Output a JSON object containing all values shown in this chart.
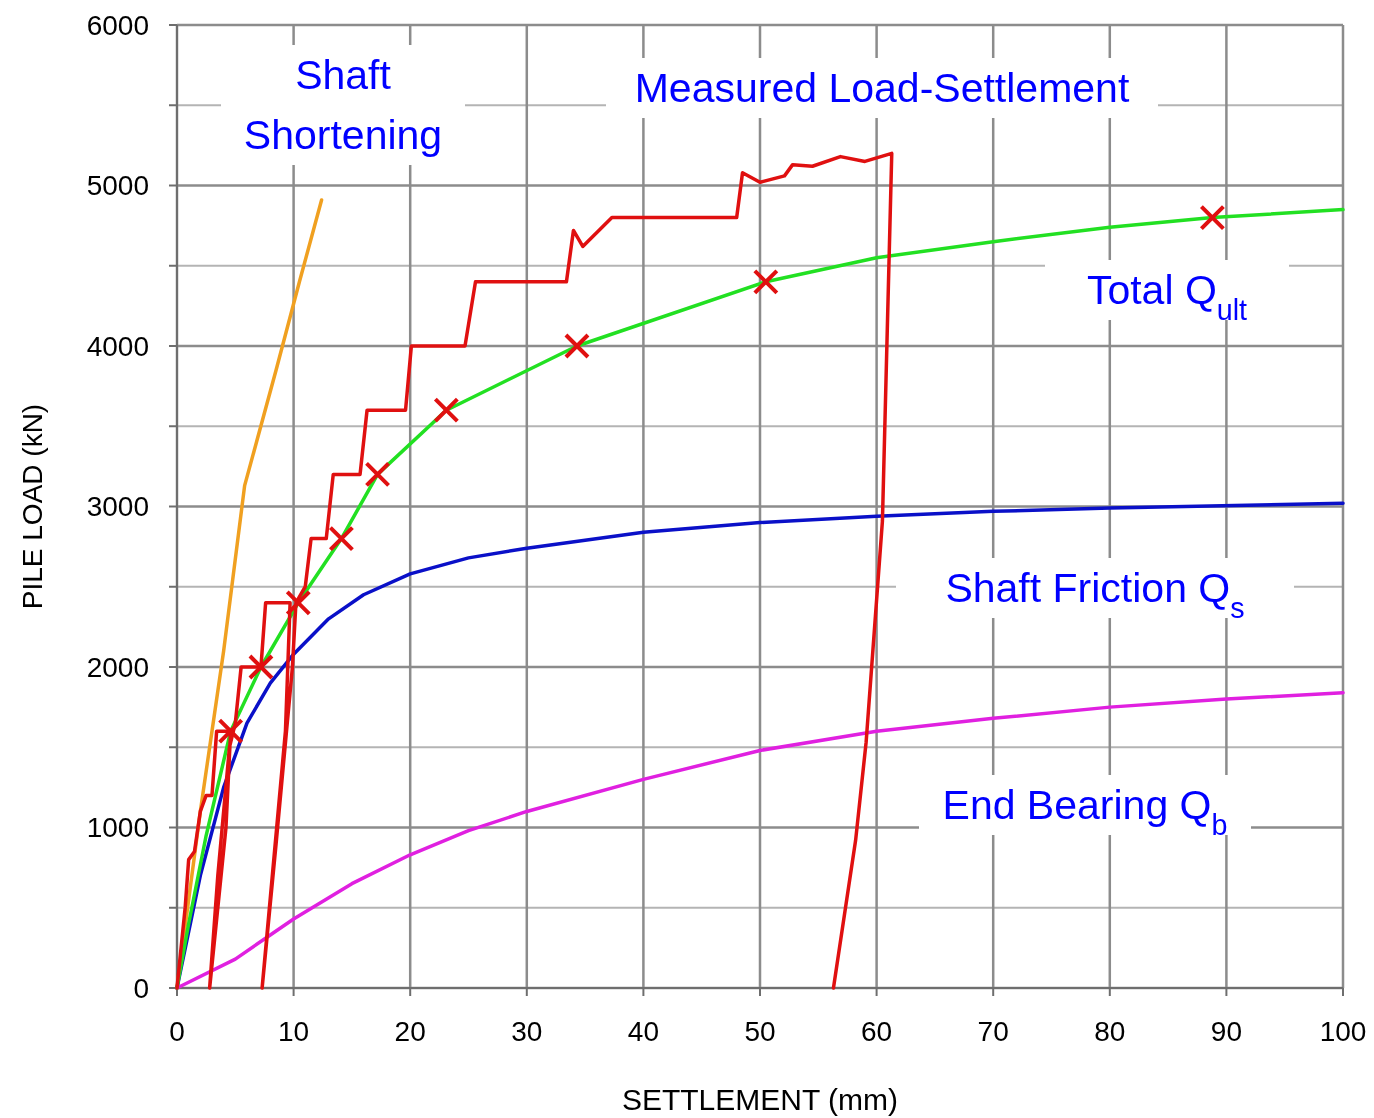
{
  "chart_data": {
    "type": "line",
    "xlabel": "SETTLEMENT (mm)",
    "ylabel": "PILE LOAD (kN)",
    "xlim": [
      0,
      100
    ],
    "ylim": [
      0,
      6000
    ],
    "xticks": [
      0,
      10,
      20,
      30,
      40,
      50,
      60,
      70,
      80,
      90,
      100
    ],
    "yticks": [
      0,
      {
        "value": 500,
        "label": null
      },
      1000,
      {
        "value": 1500,
        "label": null
      },
      2000,
      {
        "value": 2500,
        "label": null
      },
      3000,
      {
        "value": 3500,
        "label": null
      },
      4000,
      {
        "value": 4500,
        "label": null
      },
      5000,
      {
        "value": 5500,
        "label": null
      },
      6000
    ],
    "grid": true,
    "marker": "none",
    "line_style": "solid",
    "series": [
      {
        "name": "Shaft Shortening",
        "color": "#f0a020",
        "x": [
          0,
          2,
          4,
          5.8,
          8.5,
          10.5,
          12.4
        ],
        "values": [
          0,
          1100,
          2100,
          3130,
          3850,
          4400,
          4910
        ]
      },
      {
        "name": "Shaft Friction Q$_{s}$",
        "color": "#0a10c8",
        "x": [
          0,
          2,
          4,
          6,
          8,
          10,
          13,
          16,
          20,
          25,
          30,
          40,
          50,
          60,
          70,
          80,
          100
        ],
        "values": [
          0,
          700,
          1250,
          1650,
          1900,
          2080,
          2300,
          2450,
          2580,
          2680,
          2740,
          2840,
          2900,
          2940,
          2970,
          2990,
          3020
        ]
      },
      {
        "name": "End Bearing Q$_{b}$",
        "color": "#e020e0",
        "x": [
          0,
          5,
          8,
          10,
          15,
          20,
          25,
          30,
          40,
          50,
          60,
          70,
          80,
          90,
          100
        ],
        "values": [
          0,
          180,
          330,
          430,
          650,
          830,
          980,
          1100,
          1300,
          1480,
          1600,
          1680,
          1750,
          1800,
          1840
        ]
      },
      {
        "name": "Total Q$_{ult}$",
        "color": "#22e022",
        "x": [
          0,
          1,
          2.5,
          4.6,
          7.2,
          10.4,
          14.1,
          17.2,
          23.1,
          34.3,
          50.5,
          60,
          70,
          80,
          88.8,
          100
        ],
        "values": [
          0,
          400,
          950,
          1600,
          2000,
          2400,
          2800,
          3200,
          3600,
          4000,
          4400,
          4550,
          4650,
          4740,
          4800,
          4850
        ]
      },
      {
        "name": "Measured Load-Settlement",
        "color": "#e01010",
        "x": [
          0,
          0.7,
          1,
          1.5,
          2,
          2.5,
          3,
          3.4,
          4.6,
          4.2,
          2.8,
          3.5,
          4.5,
          5,
          5.5,
          7.2,
          7.6,
          9.7,
          9.3,
          7.3,
          8.5,
          9.9,
          10.2,
          11,
          11.5,
          12.8,
          13.4,
          15.7,
          16.3,
          19.6,
          20.1,
          24.7,
          25.6,
          33.4,
          34,
          34.8,
          37.3,
          48,
          48.5,
          50,
          52.1,
          52.8,
          54.5,
          56.9,
          59,
          61.3,
          60.5,
          59.1,
          58.2,
          56.3
        ],
        "values": [
          0,
          500,
          800,
          850,
          1100,
          1200,
          1200,
          1600,
          1600,
          1000,
          0,
          700,
          1500,
          1650,
          2000,
          2000,
          2400,
          2400,
          1600,
          0,
          900,
          2000,
          2400,
          2500,
          2800,
          2800,
          3200,
          3200,
          3600,
          3600,
          4000,
          4000,
          4400,
          4400,
          4720,
          4620,
          4800,
          4800,
          5080,
          5020,
          5060,
          5130,
          5120,
          5180,
          5150,
          5200,
          2910,
          1530,
          920,
          0
        ]
      },
      {
        "type": "scatter",
        "marker": "cross",
        "color": "#e01010",
        "x": [
          4.6,
          7.2,
          10.4,
          14.1,
          17.2,
          23.1,
          34.3,
          50.5,
          88.8
        ],
        "values": [
          1600,
          2000,
          2400,
          2800,
          3200,
          3600,
          4000,
          4400,
          4800
        ]
      }
    ]
  }
}
